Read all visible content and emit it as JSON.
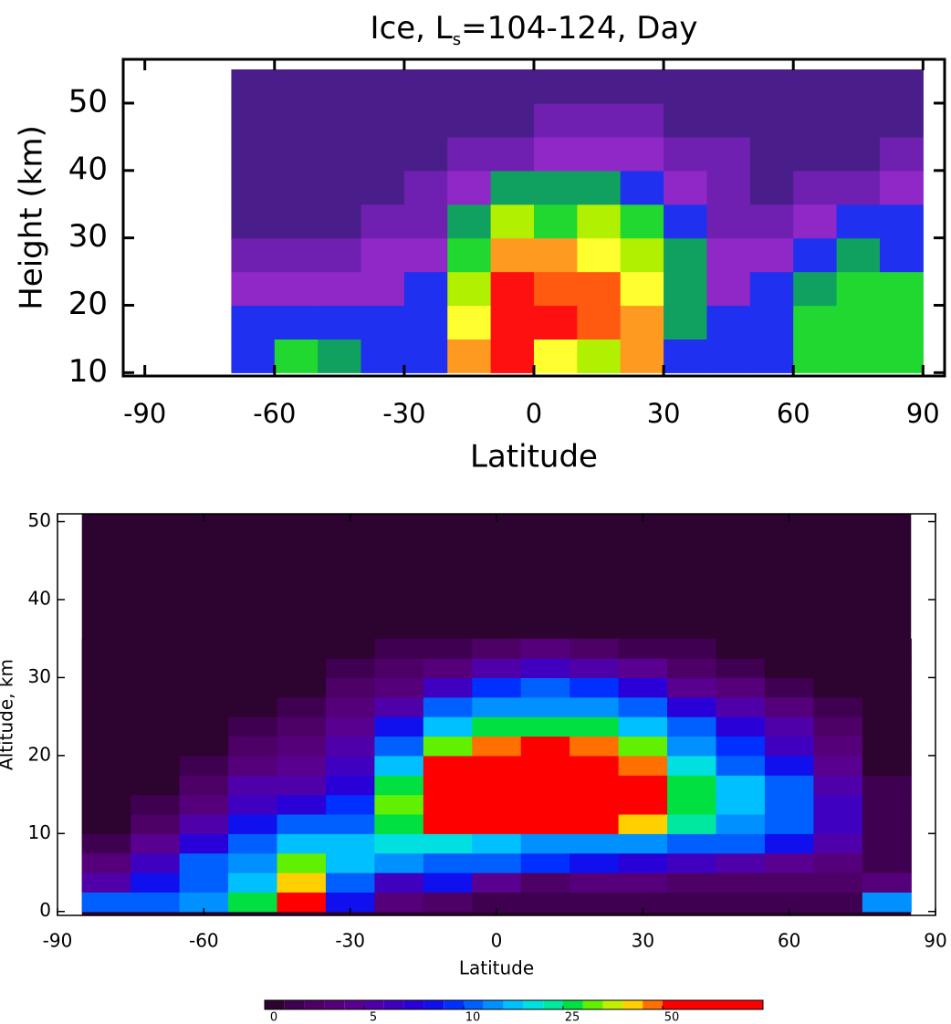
{
  "chart_data": [
    {
      "type": "heatmap",
      "title": [
        "Ice,  L",
        "s",
        "=104-124,  Day"
      ],
      "xlabel": "Latitude",
      "ylabel": "Height (km)",
      "xlim": [
        -95,
        95
      ],
      "ylim": [
        9.5,
        56.5
      ],
      "xticks": [
        -90,
        -60,
        -30,
        0,
        30,
        60,
        90
      ],
      "yticks": [
        10,
        20,
        30,
        40,
        50
      ],
      "x": [
        -65,
        -55,
        -45,
        -35,
        -25,
        -15,
        -5,
        5,
        15,
        25,
        35,
        45,
        55,
        65,
        75,
        85
      ],
      "y": [
        10,
        15,
        20,
        25,
        30,
        35,
        40,
        45,
        50
      ],
      "colorscale": [
        "#2a1050",
        "#4a1e8a",
        "#7020b0",
        "#9028c8",
        "#2030f0",
        "#10a060",
        "#20d830",
        "#b0f000",
        "#ffff30",
        "#ff9a20",
        "#ff5a10",
        "#ff1010"
      ],
      "z": [
        [
          4,
          6,
          5,
          4,
          4,
          9,
          11,
          8,
          7,
          9,
          4,
          4,
          4,
          6,
          6,
          6
        ],
        [
          4,
          4,
          4,
          4,
          4,
          8,
          11,
          11,
          10,
          9,
          5,
          4,
          4,
          6,
          6,
          6
        ],
        [
          3,
          3,
          3,
          3,
          4,
          7,
          11,
          10,
          10,
          8,
          5,
          3,
          4,
          5,
          6,
          6
        ],
        [
          2,
          2,
          2,
          3,
          3,
          6,
          9,
          9,
          8,
          7,
          5,
          3,
          3,
          4,
          5,
          4
        ],
        [
          1,
          1,
          1,
          2,
          2,
          5,
          7,
          6,
          7,
          6,
          4,
          2,
          2,
          3,
          4,
          4
        ],
        [
          1,
          1,
          1,
          1,
          2,
          3,
          5,
          5,
          5,
          4,
          3,
          2,
          1,
          2,
          2,
          3
        ],
        [
          1,
          1,
          1,
          1,
          1,
          2,
          2,
          3,
          3,
          3,
          2,
          2,
          1,
          1,
          1,
          2
        ],
        [
          1,
          1,
          1,
          1,
          1,
          1,
          1,
          2,
          2,
          2,
          1,
          1,
          1,
          1,
          1,
          1
        ],
        [
          1,
          1,
          1,
          1,
          1,
          1,
          1,
          1,
          1,
          1,
          1,
          1,
          1,
          1,
          1,
          1
        ]
      ]
    },
    {
      "type": "contour",
      "xlabel": "Latitude",
      "ylabel": "Altitude, km",
      "xlim": [
        -90,
        90
      ],
      "ylim": [
        -0.5,
        51
      ],
      "xticks": [
        -90,
        -60,
        -30,
        0,
        30,
        60,
        90
      ],
      "yticks": [
        0,
        10,
        20,
        30,
        40,
        50
      ],
      "x": [
        -80,
        -70,
        -60,
        -50,
        -40,
        -30,
        -20,
        -10,
        0,
        10,
        20,
        30,
        40,
        50,
        60,
        70,
        80
      ],
      "y": [
        0,
        2.5,
        5,
        7.5,
        10,
        12.5,
        15,
        17.5,
        20,
        22.5,
        25,
        27.5,
        30,
        32.5
      ],
      "levels": [
        0,
        1,
        2,
        3,
        4,
        5,
        6,
        7,
        8,
        9,
        10,
        13,
        16,
        19,
        22,
        25,
        30,
        35,
        40,
        45,
        50,
        60
      ],
      "colors": [
        "#2d0330",
        "#3f0052",
        "#4d0066",
        "#55007a",
        "#5a0090",
        "#5000a8",
        "#4000c0",
        "#2a00d8",
        "#1010ee",
        "#0030ff",
        "#0060ff",
        "#0090ff",
        "#00c0ff",
        "#00e0e0",
        "#00e8a0",
        "#00e040",
        "#60f000",
        "#c0f000",
        "#ffd000",
        "#ff7000",
        "#ff0000"
      ],
      "colorbar_ticks": [
        0,
        5,
        10,
        25,
        50
      ],
      "z": [
        [
          10,
          12,
          15,
          25,
          55,
          8,
          3,
          2,
          1,
          1,
          1,
          1,
          1,
          1,
          1,
          1,
          15
        ],
        [
          5,
          8,
          12,
          18,
          40,
          12,
          6,
          8,
          4,
          2,
          3,
          3,
          2,
          2,
          2,
          2,
          3
        ],
        [
          3,
          6,
          10,
          14,
          30,
          18,
          15,
          12,
          10,
          9,
          8,
          7,
          6,
          5,
          4,
          3,
          1
        ],
        [
          1,
          4,
          7,
          10,
          16,
          16,
          20,
          20,
          18,
          15,
          15,
          14,
          12,
          10,
          8,
          5,
          1
        ],
        [
          0,
          2,
          5,
          8,
          10,
          12,
          28,
          50,
          55,
          55,
          55,
          40,
          22,
          15,
          12,
          6,
          1
        ],
        [
          0,
          1,
          3,
          6,
          7,
          9,
          30,
          55,
          60,
          60,
          60,
          50,
          25,
          18,
          12,
          6,
          1
        ],
        [
          0,
          0,
          2,
          5,
          5,
          7,
          25,
          55,
          60,
          60,
          60,
          55,
          28,
          18,
          10,
          5,
          1
        ],
        [
          0,
          0,
          1,
          3,
          4,
          6,
          18,
          50,
          58,
          60,
          60,
          48,
          20,
          12,
          8,
          4,
          0
        ],
        [
          0,
          0,
          0,
          2,
          3,
          5,
          12,
          30,
          48,
          52,
          45,
          30,
          14,
          9,
          6,
          3,
          0
        ],
        [
          0,
          0,
          0,
          1,
          2,
          4,
          8,
          18,
          25,
          28,
          25,
          18,
          10,
          7,
          5,
          2,
          0
        ],
        [
          0,
          0,
          0,
          0,
          1,
          3,
          5,
          10,
          14,
          15,
          14,
          11,
          7,
          5,
          3,
          1,
          0
        ],
        [
          0,
          0,
          0,
          0,
          0,
          2,
          3,
          6,
          9,
          10,
          9,
          7,
          4,
          3,
          1,
          0,
          0
        ],
        [
          0,
          0,
          0,
          0,
          0,
          1,
          2,
          3,
          5,
          6,
          5,
          4,
          2,
          1,
          0,
          0,
          0
        ],
        [
          0,
          0,
          0,
          0,
          0,
          0,
          1,
          1,
          2,
          3,
          2,
          1,
          1,
          0,
          0,
          0,
          0
        ]
      ]
    }
  ]
}
